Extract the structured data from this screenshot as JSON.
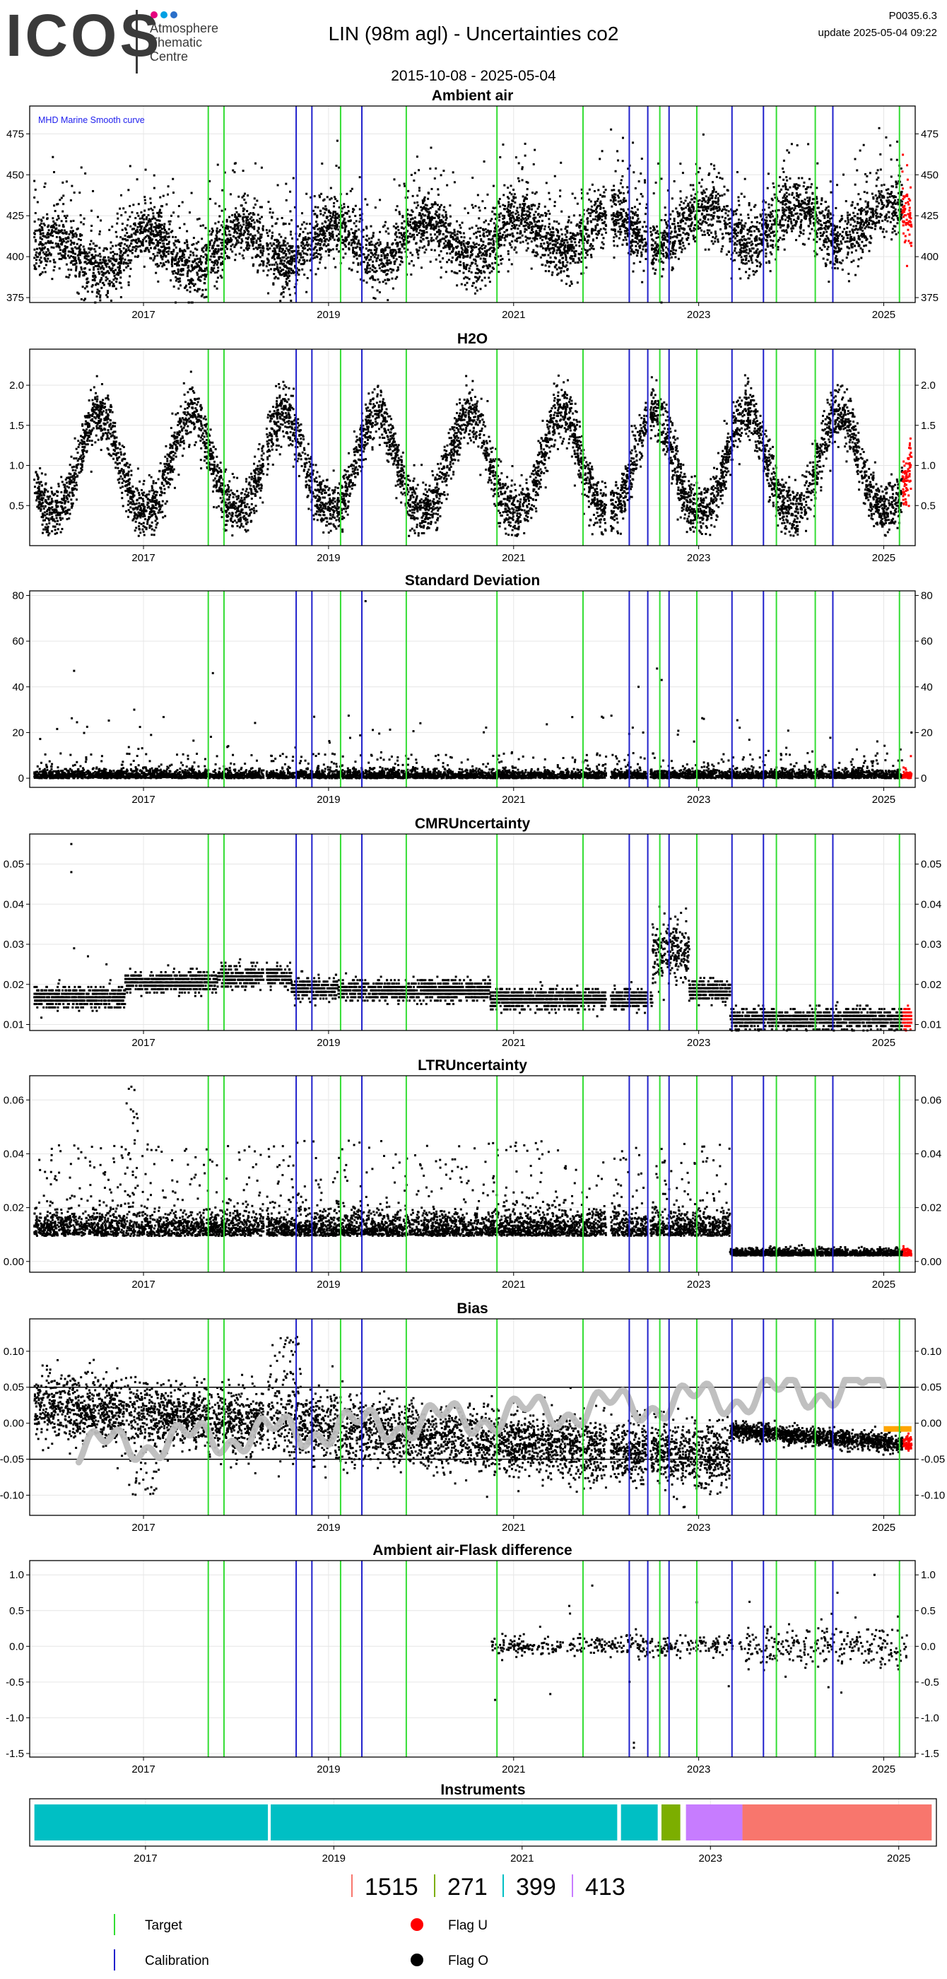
{
  "header": {
    "logo_text": "ICOS",
    "logo_subtitle": "Atmosphere\nThematic\nCentre",
    "title": "LIN  (98m agl) - Uncertainties co2",
    "date_range": "2015-10-08 - 2025-05-04",
    "version": "P0035.6.3",
    "update": "update  2025-05-04 09:22",
    "logo_dot_colors": [
      "#e6007e",
      "#00a0e3",
      "#2a6fc9"
    ]
  },
  "colors": {
    "target_line": "#33dd33",
    "calibration_line": "#2020cc",
    "data_point": "#000000",
    "flag_u": "#ff0000",
    "flag_o": "#000000",
    "grid": "#e6e6e6",
    "bias_smooth": "#bdbdbd",
    "bias_recent": "#ffa500"
  },
  "chart_data": {
    "type": "scatter",
    "x_range": [
      2015.77,
      2025.34
    ],
    "x_ticks": [
      2017,
      2019,
      2021,
      2023,
      2025
    ],
    "x_tick_labels": [
      "2017",
      "2019",
      "2021",
      "2023",
      "2025"
    ],
    "target_events": [
      2017.7,
      2017.87,
      2019.13,
      2019.84,
      2020.82,
      2021.75,
      2022.58,
      2022.98,
      2023.84,
      2024.26,
      2025.17
    ],
    "calibration_events": [
      2018.65,
      2018.82,
      2019.36,
      2022.25,
      2022.45,
      2022.68,
      2023.36,
      2023.7,
      2024.45
    ],
    "panels": [
      {
        "id": "ambient",
        "title": "Ambient air",
        "annotation": "MHD Marine Smooth curve",
        "ylim": [
          372,
          492
        ],
        "yticks": [
          375,
          400,
          425,
          450,
          475
        ],
        "ytick_labels": [
          "375",
          "400",
          "425",
          "450",
          "475"
        ],
        "series": [
          {
            "gen": "ambient"
          }
        ]
      },
      {
        "id": "h2o",
        "title": "H2O",
        "ylim": [
          0.0,
          2.45
        ],
        "yticks": [
          0.5,
          1.0,
          1.5,
          2.0
        ],
        "ytick_labels": [
          "0.5",
          "1.0",
          "1.5",
          "2.0"
        ],
        "series": [
          {
            "gen": "h2o"
          }
        ]
      },
      {
        "id": "stdev",
        "title": "Standard Deviation",
        "ylim": [
          -4,
          82
        ],
        "yticks": [
          0,
          20,
          40,
          60,
          80
        ],
        "ytick_labels": [
          "0",
          "20",
          "40",
          "60",
          "80"
        ],
        "series": [
          {
            "gen": "stdev"
          }
        ]
      },
      {
        "id": "cmr",
        "title": "CMRUncertainty",
        "ylim": [
          0.0085,
          0.0575
        ],
        "yticks": [
          0.01,
          0.02,
          0.03,
          0.04,
          0.05
        ],
        "ytick_labels": [
          "0.01",
          "0.02",
          "0.03",
          "0.04",
          "0.05"
        ],
        "series": [
          {
            "gen": "cmr"
          }
        ]
      },
      {
        "id": "ltr",
        "title": "LTRUncertainty",
        "ylim": [
          -0.004,
          0.069
        ],
        "yticks": [
          0.0,
          0.02,
          0.04,
          0.06
        ],
        "ytick_labels": [
          "0.00",
          "0.02",
          "0.04",
          "0.06"
        ],
        "series": [
          {
            "gen": "ltr"
          }
        ]
      },
      {
        "id": "bias",
        "title": "Bias",
        "ylim": [
          -0.128,
          0.145
        ],
        "yticks": [
          -0.1,
          -0.05,
          0.0,
          0.05,
          0.1
        ],
        "ytick_labels": [
          "-0.10",
          "-0.05",
          "0.00",
          "0.05",
          "0.10"
        ],
        "hlines": [
          0.05,
          -0.05
        ],
        "series": [
          {
            "gen": "bias"
          }
        ]
      },
      {
        "id": "flask",
        "title": "Ambient air-Flask difference",
        "ylim": [
          -1.55,
          1.2
        ],
        "yticks": [
          -1.5,
          -1.0,
          -0.5,
          0.0,
          0.5,
          1.0
        ],
        "ytick_labels": [
          "-1.5",
          "-1.0",
          "-0.5",
          "0.0",
          "0.5",
          "1.0"
        ],
        "series": [
          {
            "gen": "flask"
          }
        ]
      }
    ],
    "instruments": {
      "title": "Instruments",
      "x_range": [
        2015.77,
        2025.4
      ],
      "segments": [
        {
          "id": "399",
          "start": 2015.82,
          "end": 2018.3,
          "color": "#00bfc4"
        },
        {
          "id": "399",
          "start": 2018.33,
          "end": 2022.01,
          "color": "#00bfc4"
        },
        {
          "id": "399",
          "start": 2022.05,
          "end": 2022.44,
          "color": "#00bfc4"
        },
        {
          "id": "271",
          "start": 2022.48,
          "end": 2022.68,
          "color": "#7cae00"
        },
        {
          "id": "413",
          "start": 2022.74,
          "end": 2023.34,
          "color": "#c77cff"
        },
        {
          "id": "1515",
          "start": 2023.34,
          "end": 2025.35,
          "color": "#f8766d"
        }
      ],
      "legend": [
        {
          "label": "1515",
          "color": "#f8766d"
        },
        {
          "label": "271",
          "color": "#7cae00"
        },
        {
          "label": "399",
          "color": "#00bfc4"
        },
        {
          "label": "413",
          "color": "#c77cff"
        }
      ]
    },
    "legend": {
      "target": "Target",
      "calibration": "Calibration",
      "flag_u": "Flag U",
      "flag_o": "Flag O"
    }
  }
}
